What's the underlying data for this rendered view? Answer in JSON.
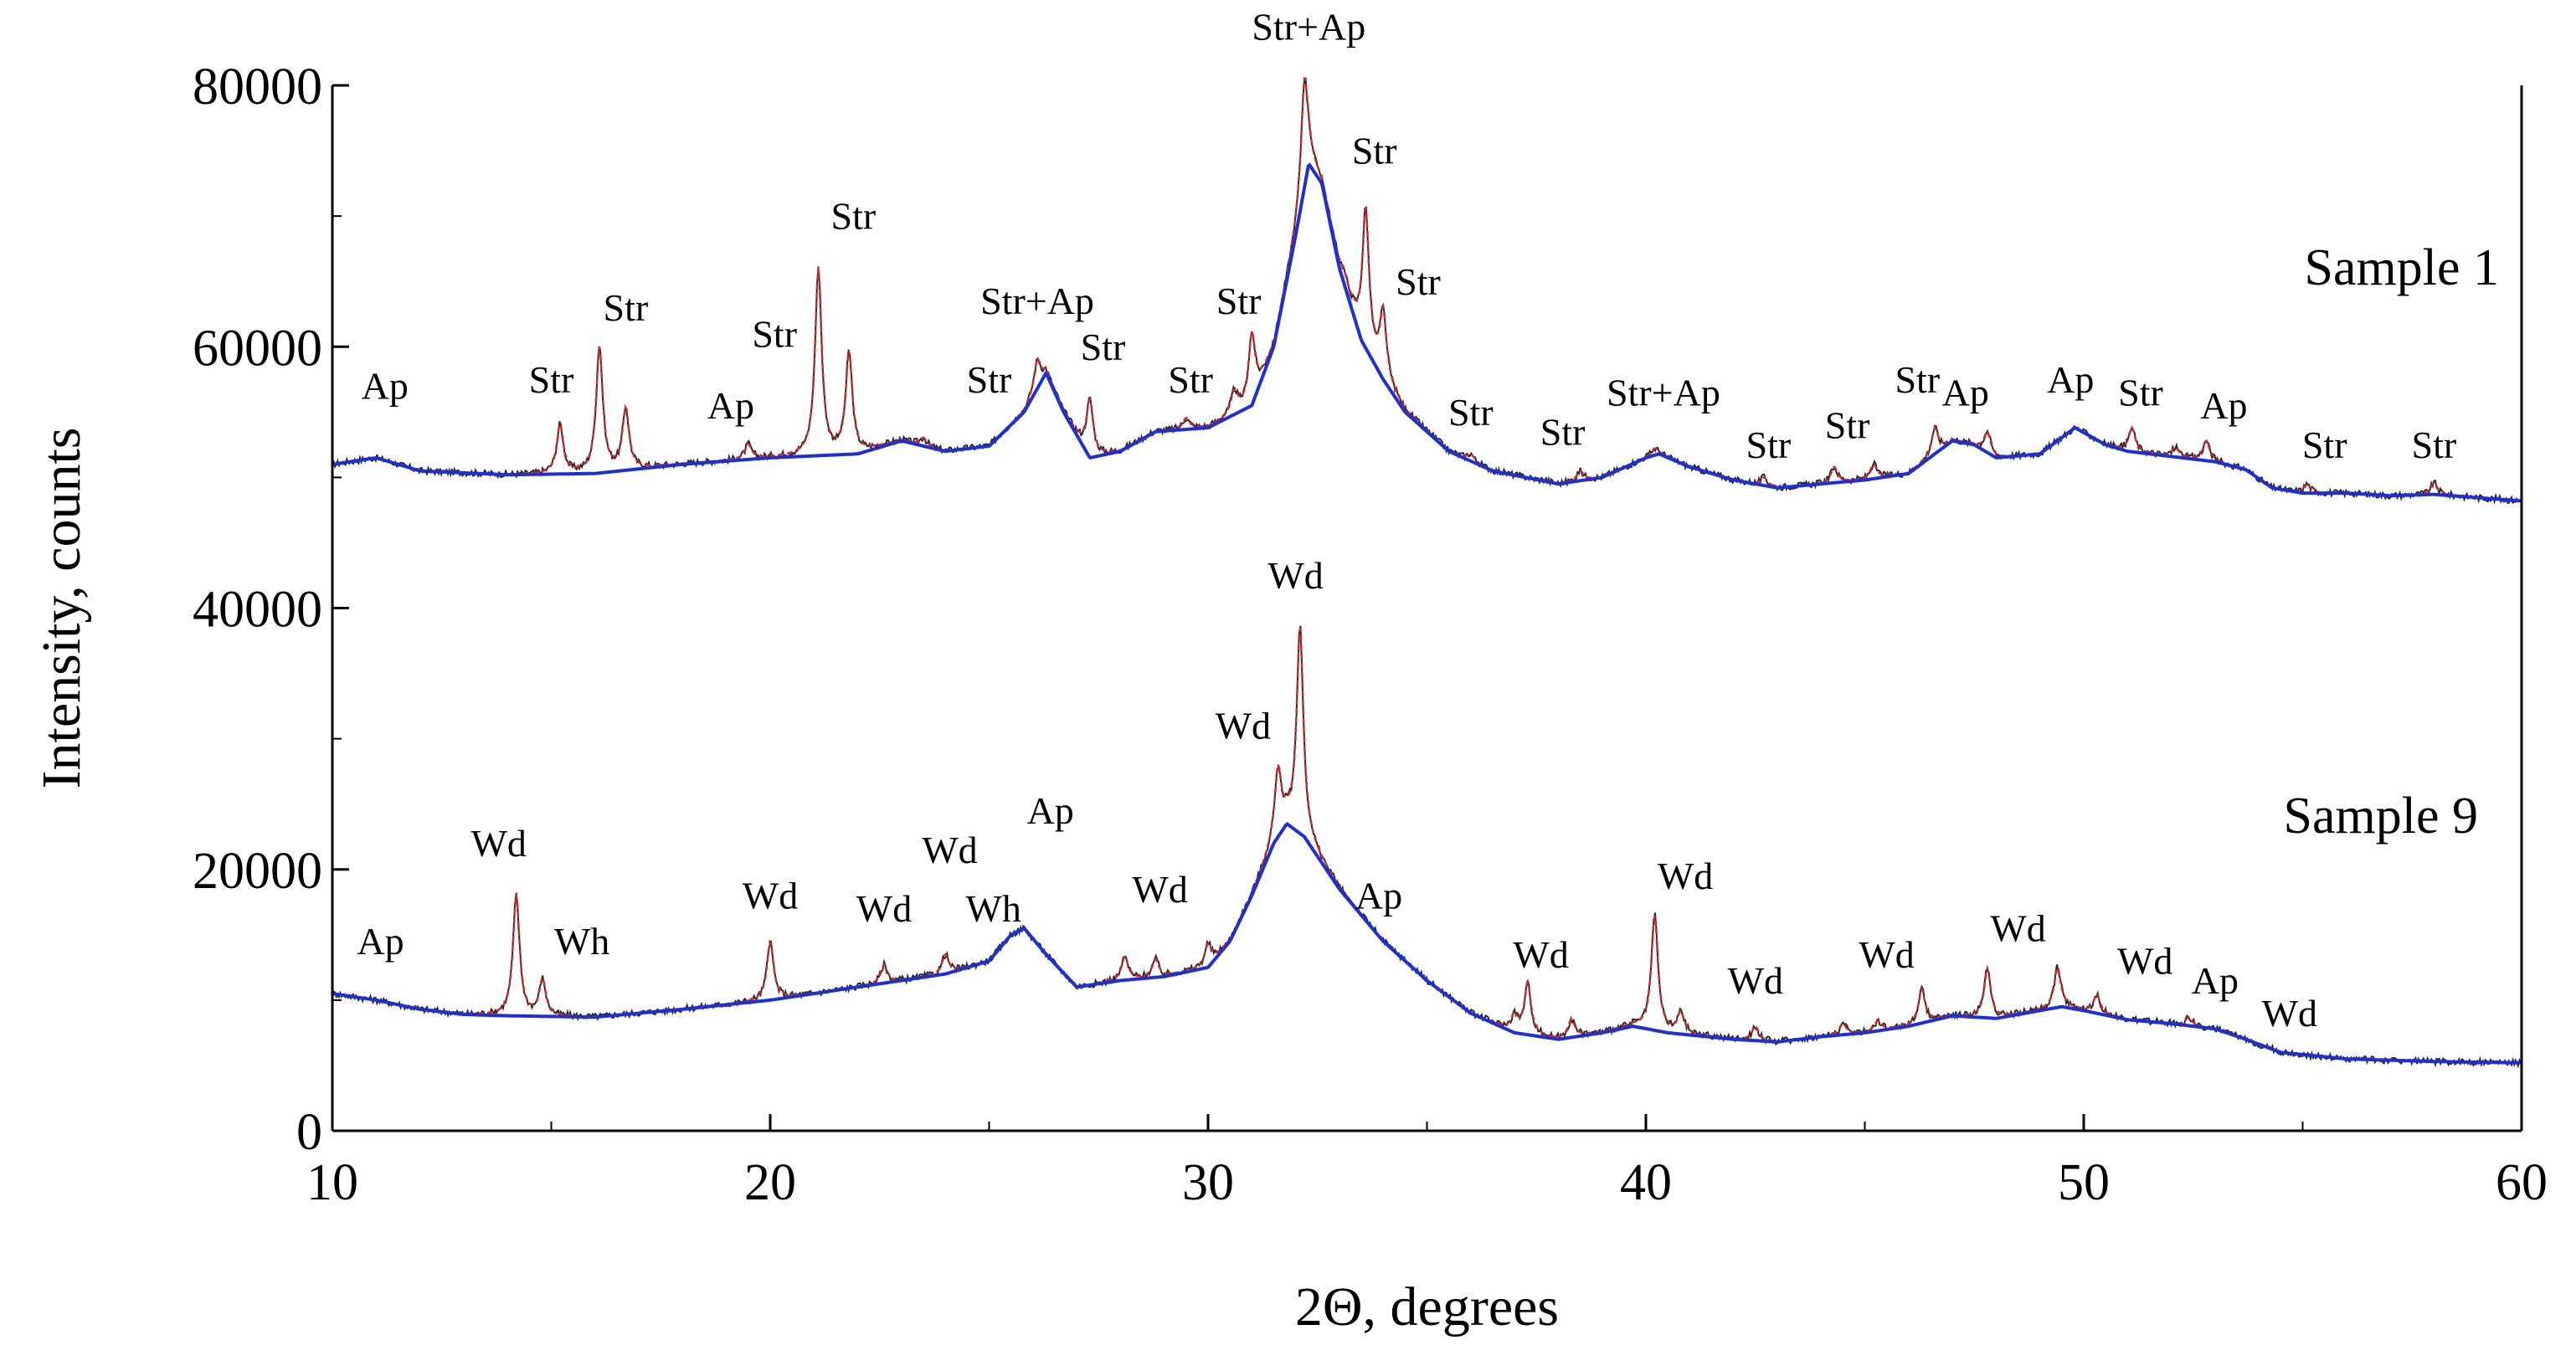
{
  "chart_data": {
    "type": "line",
    "title": "",
    "xlabel": "2Θ, degrees",
    "ylabel": "Intensity, counts",
    "xlim": [
      10,
      60
    ],
    "ylim": [
      0,
      80000
    ],
    "x_ticks": [
      "10",
      "20",
      "30",
      "40",
      "50",
      "60"
    ],
    "y_ticks": [
      "0",
      "20000",
      "40000",
      "60000",
      "80000"
    ],
    "grid": false,
    "colors": {
      "observed": "#2a2a2a",
      "fitted": "#cc2a2a",
      "background": "#1f2fd6"
    },
    "samples": [
      {
        "name": "Sample 1",
        "baseline": [
          [
            10,
            51000
          ],
          [
            11,
            51500
          ],
          [
            12,
            50500
          ],
          [
            14,
            50200
          ],
          [
            16,
            50300
          ],
          [
            18,
            51000
          ],
          [
            20,
            51500
          ],
          [
            22,
            51800
          ],
          [
            23,
            52800
          ],
          [
            24,
            52000
          ],
          [
            25,
            52400
          ],
          [
            25.8,
            55000
          ],
          [
            26.3,
            58000
          ],
          [
            26.7,
            55000
          ],
          [
            27.3,
            51500
          ],
          [
            28,
            52000
          ],
          [
            28.8,
            53500
          ],
          [
            30,
            53800
          ],
          [
            31,
            55500
          ],
          [
            31.5,
            60000
          ],
          [
            32,
            68500
          ],
          [
            32.3,
            74000
          ],
          [
            32.6,
            72500
          ],
          [
            33,
            66000
          ],
          [
            33.5,
            60500
          ],
          [
            34,
            57500
          ],
          [
            34.5,
            55000
          ],
          [
            35.5,
            52000
          ],
          [
            36.5,
            50500
          ],
          [
            38,
            49500
          ],
          [
            39,
            50000
          ],
          [
            40,
            51500
          ],
          [
            40.3,
            51800
          ],
          [
            41,
            50800
          ],
          [
            42,
            49800
          ],
          [
            43,
            49200
          ],
          [
            44,
            49500
          ],
          [
            45,
            49800
          ],
          [
            46,
            50300
          ],
          [
            47,
            52800
          ],
          [
            47.5,
            52500
          ],
          [
            48,
            51500
          ],
          [
            49,
            51800
          ],
          [
            49.8,
            53800
          ],
          [
            50.5,
            52500
          ],
          [
            51,
            52000
          ],
          [
            52,
            51600
          ],
          [
            53,
            51200
          ],
          [
            53.7,
            50600
          ],
          [
            54.3,
            49200
          ],
          [
            55,
            48800
          ],
          [
            56,
            48800
          ],
          [
            57,
            48600
          ],
          [
            58,
            48700
          ],
          [
            60,
            48200
          ]
        ],
        "peaks": [
          [
            15.2,
            54000
          ],
          [
            16.1,
            60000
          ],
          [
            16.7,
            55200
          ],
          [
            19.5,
            52500
          ],
          [
            21.1,
            66000
          ],
          [
            21.8,
            59500
          ],
          [
            23.5,
            53000
          ],
          [
            26.1,
            59000
          ],
          [
            27.3,
            56000
          ],
          [
            29.5,
            54500
          ],
          [
            30.6,
            56500
          ],
          [
            31,
            61000
          ],
          [
            32.2,
            80500
          ],
          [
            33.1,
            65500
          ],
          [
            33.6,
            70500
          ],
          [
            34,
            62500
          ],
          [
            36,
            51800
          ],
          [
            37.7,
            49800
          ],
          [
            38.5,
            50500
          ],
          [
            40.2,
            52200
          ],
          [
            42.7,
            50000
          ],
          [
            44.3,
            50800
          ],
          [
            45.2,
            51000
          ],
          [
            46.6,
            53800
          ],
          [
            47.8,
            53500
          ],
          [
            49.5,
            53000
          ],
          [
            51.1,
            53800
          ],
          [
            52.1,
            52300
          ],
          [
            52.8,
            52800
          ],
          [
            55.1,
            49500
          ],
          [
            58,
            49600
          ]
        ],
        "annotations": [
          {
            "text": "Ap",
            "x": 11.2,
            "y": 56000
          },
          {
            "text": "Str",
            "x": 15.0,
            "y": 56500
          },
          {
            "text": "Str",
            "x": 16.7,
            "y": 62000
          },
          {
            "text": "Ap",
            "x": 19.1,
            "y": 54500
          },
          {
            "text": "Str",
            "x": 20.1,
            "y": 60000
          },
          {
            "text": "Str",
            "x": 21.9,
            "y": 69000
          },
          {
            "text": "Str+Ap",
            "x": 26.1,
            "y": 62500
          },
          {
            "text": "Str",
            "x": 25.0,
            "y": 56500
          },
          {
            "text": "Str",
            "x": 27.6,
            "y": 59000
          },
          {
            "text": "Str",
            "x": 29.6,
            "y": 56500
          },
          {
            "text": "Str",
            "x": 30.7,
            "y": 62500
          },
          {
            "text": "Str+Ap",
            "x": 32.3,
            "y": 83500
          },
          {
            "text": "Str",
            "x": 33.8,
            "y": 74000
          },
          {
            "text": "Str",
            "x": 34.8,
            "y": 64000
          },
          {
            "text": "Str",
            "x": 36.0,
            "y": 54000
          },
          {
            "text": "Str",
            "x": 38.1,
            "y": 52500
          },
          {
            "text": "Str+Ap",
            "x": 40.4,
            "y": 55500
          },
          {
            "text": "Str",
            "x": 42.8,
            "y": 51500
          },
          {
            "text": "Str",
            "x": 44.6,
            "y": 53000
          },
          {
            "text": "Str",
            "x": 46.2,
            "y": 56500
          },
          {
            "text": "Ap",
            "x": 47.3,
            "y": 55500
          },
          {
            "text": "Ap",
            "x": 49.7,
            "y": 56500
          },
          {
            "text": "Str",
            "x": 51.3,
            "y": 55500
          },
          {
            "text": "Ap",
            "x": 53.2,
            "y": 54500
          },
          {
            "text": "Str",
            "x": 55.5,
            "y": 51500
          },
          {
            "text": "Str",
            "x": 58.0,
            "y": 51500
          }
        ]
      },
      {
        "name": "Sample 9",
        "baseline": [
          [
            10,
            10500
          ],
          [
            11,
            10000
          ],
          [
            12,
            9300
          ],
          [
            13,
            8900
          ],
          [
            14,
            8800
          ],
          [
            16,
            8700
          ],
          [
            18,
            9300
          ],
          [
            20,
            10000
          ],
          [
            22,
            11000
          ],
          [
            23,
            11500
          ],
          [
            24,
            12000
          ],
          [
            25,
            13000
          ],
          [
            25.5,
            15000
          ],
          [
            25.8,
            15500
          ],
          [
            26.3,
            13500
          ],
          [
            27,
            11000
          ],
          [
            28,
            11500
          ],
          [
            29,
            11800
          ],
          [
            30,
            12500
          ],
          [
            30.5,
            14500
          ],
          [
            31,
            18000
          ],
          [
            31.5,
            22000
          ],
          [
            31.8,
            23500
          ],
          [
            32.2,
            22500
          ],
          [
            33,
            18500
          ],
          [
            34,
            14500
          ],
          [
            35,
            11500
          ],
          [
            36,
            9000
          ],
          [
            37,
            7500
          ],
          [
            38,
            7000
          ],
          [
            39,
            7500
          ],
          [
            39.7,
            8000
          ],
          [
            40.5,
            7500
          ],
          [
            42,
            7000
          ],
          [
            43,
            6800
          ],
          [
            44,
            7200
          ],
          [
            45,
            7500
          ],
          [
            46,
            8000
          ],
          [
            47,
            8800
          ],
          [
            48,
            8600
          ],
          [
            49.5,
            9500
          ],
          [
            50,
            9200
          ],
          [
            51,
            8500
          ],
          [
            52,
            8200
          ],
          [
            53,
            7800
          ],
          [
            53.7,
            7000
          ],
          [
            54.5,
            6000
          ],
          [
            56,
            5500
          ],
          [
            58,
            5300
          ],
          [
            60,
            5200
          ]
        ],
        "peaks": [
          [
            14.2,
            18000
          ],
          [
            14.8,
            11500
          ],
          [
            20,
            14500
          ],
          [
            22.6,
            12700
          ],
          [
            24,
            13500
          ],
          [
            28.1,
            13300
          ],
          [
            28.8,
            13100
          ],
          [
            30,
            14300
          ],
          [
            31.6,
            27500
          ],
          [
            32.1,
            38500
          ],
          [
            37,
            8800
          ],
          [
            37.3,
            11200
          ],
          [
            38.3,
            8500
          ],
          [
            40.2,
            16500
          ],
          [
            40.8,
            9000
          ],
          [
            42.5,
            8000
          ],
          [
            44.5,
            8200
          ],
          [
            45.3,
            8400
          ],
          [
            46.3,
            10800
          ],
          [
            47.8,
            12400
          ],
          [
            49.4,
            12500
          ],
          [
            50.3,
            10400
          ],
          [
            51.8,
            8300
          ],
          [
            52.4,
            8700
          ],
          [
            53.8,
            6600
          ]
        ],
        "annotations": [
          {
            "text": "Ap",
            "x": 11.1,
            "y": 13500
          },
          {
            "text": "Wd",
            "x": 13.8,
            "y": 21000
          },
          {
            "text": "Wh",
            "x": 15.7,
            "y": 13500
          },
          {
            "text": "Wd",
            "x": 20.0,
            "y": 17000
          },
          {
            "text": "Wd",
            "x": 22.6,
            "y": 16000
          },
          {
            "text": "Wd",
            "x": 24.1,
            "y": 20500
          },
          {
            "text": "Wh",
            "x": 25.1,
            "y": 16000
          },
          {
            "text": "Ap",
            "x": 26.4,
            "y": 23500
          },
          {
            "text": "Wd",
            "x": 28.9,
            "y": 17500
          },
          {
            "text": "Wd",
            "x": 30.8,
            "y": 30000
          },
          {
            "text": "Wd",
            "x": 32.0,
            "y": 41500
          },
          {
            "text": "Ap",
            "x": 33.9,
            "y": 17000
          },
          {
            "text": "Wd",
            "x": 37.6,
            "y": 12500
          },
          {
            "text": "Wd",
            "x": 40.9,
            "y": 18500
          },
          {
            "text": "Wd",
            "x": 42.5,
            "y": 10500
          },
          {
            "text": "Wd",
            "x": 45.5,
            "y": 12500
          },
          {
            "text": "Wd",
            "x": 48.5,
            "y": 14500
          },
          {
            "text": "Wd",
            "x": 51.4,
            "y": 12000
          },
          {
            "text": "Ap",
            "x": 53.0,
            "y": 10500
          },
          {
            "text": "Wd",
            "x": 54.7,
            "y": 8000
          }
        ]
      }
    ]
  }
}
